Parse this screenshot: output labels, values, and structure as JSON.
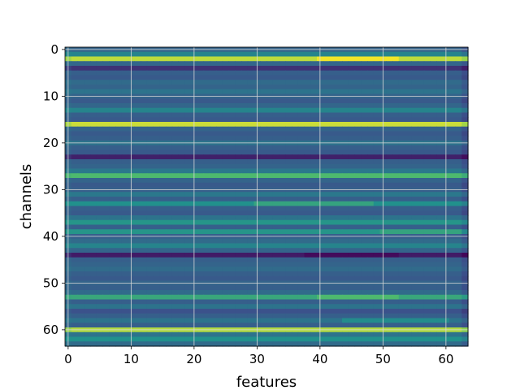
{
  "chart_data": {
    "type": "heatmap",
    "title": "",
    "xlabel": "features",
    "ylabel": "channels",
    "xlim": [
      -0.5,
      63.5
    ],
    "ylim": [
      63.5,
      -0.5
    ],
    "y_inverted": true,
    "grid": true,
    "colormap": "viridis",
    "colormap_stops": [
      "#440154",
      "#3b528b",
      "#21918c",
      "#5ec962",
      "#fde725"
    ],
    "value_range": [
      0,
      1
    ],
    "rows": 64,
    "cols": 64,
    "x_ticks": [
      0,
      10,
      20,
      30,
      40,
      50,
      60
    ],
    "y_ticks": [
      0,
      10,
      20,
      30,
      40,
      50,
      60
    ],
    "x_tick_labels": [
      "0",
      "10",
      "20",
      "30",
      "40",
      "50",
      "60"
    ],
    "y_tick_labels": [
      "0",
      "10",
      "20",
      "30",
      "40",
      "50",
      "60"
    ],
    "row_values": [
      0.32,
      0.45,
      0.9,
      0.33,
      0.15,
      0.3,
      0.28,
      0.35,
      0.32,
      0.38,
      0.32,
      0.28,
      0.33,
      0.45,
      0.3,
      0.28,
      0.92,
      0.32,
      0.28,
      0.3,
      0.38,
      0.3,
      0.28,
      0.1,
      0.3,
      0.32,
      0.4,
      0.68,
      0.32,
      0.28,
      0.3,
      0.4,
      0.3,
      0.5,
      0.3,
      0.28,
      0.38,
      0.52,
      0.3,
      0.52,
      0.3,
      0.35,
      0.45,
      0.32,
      0.08,
      0.3,
      0.32,
      0.35,
      0.3,
      0.28,
      0.32,
      0.3,
      0.35,
      0.6,
      0.3,
      0.38,
      0.25,
      0.3,
      0.38,
      0.3,
      0.88,
      0.38,
      0.5,
      0.35
    ],
    "row_feature_modifiers": [
      {
        "row": 2,
        "from": 40,
        "to": 52,
        "delta": 0.08
      },
      {
        "row": 33,
        "from": 30,
        "to": 48,
        "delta": 0.08
      },
      {
        "row": 39,
        "from": 50,
        "to": 62,
        "delta": 0.06
      },
      {
        "row": 44,
        "from": 38,
        "to": 52,
        "delta": -0.05
      },
      {
        "row": 53,
        "from": 40,
        "to": 52,
        "delta": 0.08
      },
      {
        "row": 58,
        "from": 44,
        "to": 60,
        "delta": 0.1
      }
    ],
    "column_0_offset": 0.12,
    "column_63_offset": -0.06
  }
}
